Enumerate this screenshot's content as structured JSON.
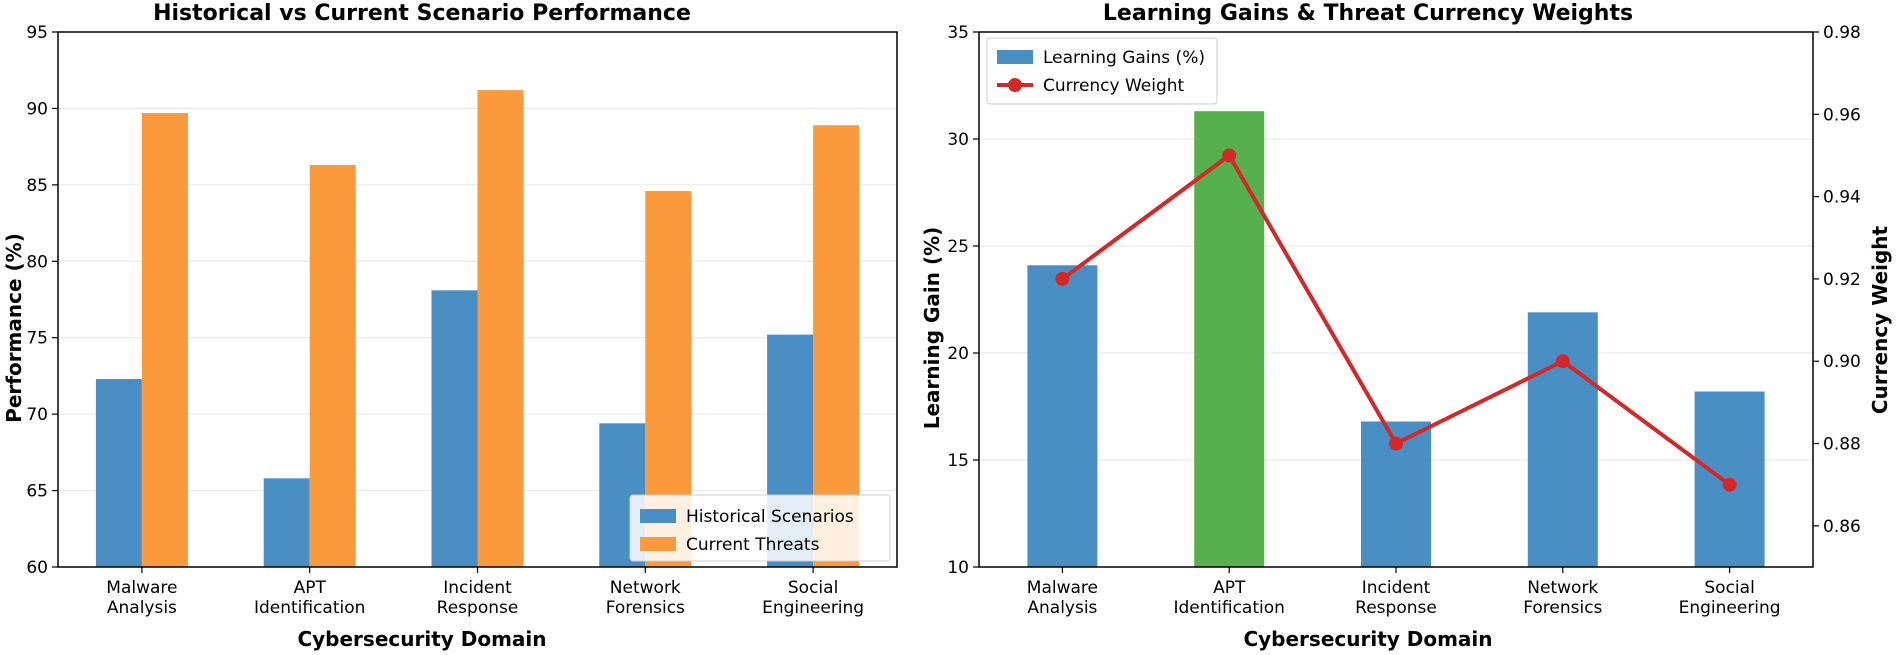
{
  "chart_data": [
    {
      "type": "bar",
      "title": "Historical vs Current Scenario Performance",
      "xlabel": "Cybersecurity Domain",
      "ylabel": "Performance (%)",
      "ylim": [
        60,
        95
      ],
      "yticks": [
        60,
        65,
        70,
        75,
        80,
        85,
        90,
        95
      ],
      "grid": "horizontal",
      "legend_position": "bottom-right",
      "categories": [
        [
          "Malware",
          "Analysis"
        ],
        [
          "APT",
          "Identification"
        ],
        [
          "Incident",
          "Response"
        ],
        [
          "Network",
          "Forensics"
        ],
        [
          "Social",
          "Engineering"
        ]
      ],
      "series": [
        {
          "name": "Historical Scenarios",
          "color": "#4a8fc4",
          "values": [
            72.3,
            65.8,
            78.1,
            69.4,
            75.2
          ]
        },
        {
          "name": "Current Threats",
          "color": "#fb9a3c",
          "values": [
            89.7,
            86.3,
            91.2,
            84.6,
            88.9
          ]
        }
      ]
    },
    {
      "type": "bar+line",
      "title": "Learning Gains & Threat Currency Weights",
      "xlabel": "Cybersecurity Domain",
      "ylabel": "Learning Gain (%)",
      "ylabel_right": "Currency Weight",
      "ylim": [
        10,
        35
      ],
      "yticks": [
        10,
        15,
        20,
        25,
        30,
        35
      ],
      "ylim_right": [
        0.85,
        0.98
      ],
      "yticks_right": [
        "0.86",
        "0.88",
        "0.90",
        "0.92",
        "0.94",
        "0.96",
        "0.98"
      ],
      "grid": "horizontal",
      "legend_position": "top-left",
      "categories": [
        [
          "Malware",
          "Analysis"
        ],
        [
          "APT",
          "Identification"
        ],
        [
          "Incident",
          "Response"
        ],
        [
          "Network",
          "Forensics"
        ],
        [
          "Social",
          "Engineering"
        ]
      ],
      "series": [
        {
          "name": "Learning Gains (%)",
          "color": "#4a8fc4",
          "highlight_color": "#55b04d",
          "highlight_index": 1,
          "values": [
            24.1,
            31.3,
            16.8,
            21.9,
            18.2
          ]
        },
        {
          "name": "Currency Weight",
          "color": "#d62728",
          "values": [
            0.92,
            0.95,
            0.88,
            0.9,
            0.87
          ],
          "axis": "right"
        }
      ]
    }
  ]
}
